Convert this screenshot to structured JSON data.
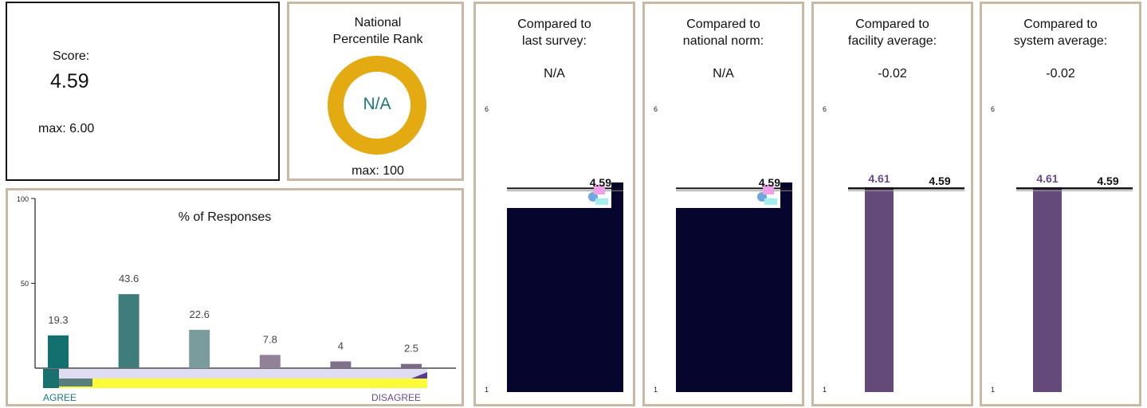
{
  "score": {
    "label": "Score:",
    "value": "4.59",
    "max_label": "max: 6.00"
  },
  "percentile": {
    "title": "National Percentile Rank",
    "value": "N/A",
    "max_label": "max: 100",
    "ring_color": "#E3AA12",
    "value_color": "#1a7a7a"
  },
  "comparisons": [
    {
      "title": "Compared to last survey:",
      "value": "N/A",
      "axis_top": "6",
      "axis_bottom": "1",
      "marker_label": "4.59",
      "bar_value": null,
      "bar_label": "",
      "bar_color": "#05052e",
      "style": "dark"
    },
    {
      "title": "Compared to national norm:",
      "value": "N/A",
      "axis_top": "6",
      "axis_bottom": "1",
      "marker_label": "4.59",
      "bar_value": null,
      "bar_label": "",
      "bar_color": "#05052e",
      "style": "dark"
    },
    {
      "title": "Compared to facility average:",
      "value": "-0.02",
      "axis_top": "6",
      "axis_bottom": "1",
      "marker_label": "4.59",
      "bar_value": 4.61,
      "bar_label": "4.61",
      "bar_color": "#634a7a",
      "style": "purple"
    },
    {
      "title": "Compared to system average:",
      "value": "-0.02",
      "axis_top": "6",
      "axis_bottom": "1",
      "marker_label": "4.59",
      "bar_value": 4.61,
      "bar_label": "4.61",
      "bar_color": "#634a7a",
      "style": "purple"
    }
  ],
  "responses": {
    "left_label": "AGREE",
    "right_label": "DISAGREE",
    "left_color": "#1a7a7a",
    "right_color": "#6b4a8c"
  },
  "chart_data": {
    "type": "bar",
    "title": "% of Responses",
    "ylim": [
      0,
      100
    ],
    "yticks": [
      "100",
      "50"
    ],
    "values": [
      19.3,
      43.6,
      22.6,
      7.8,
      4,
      2.5
    ],
    "value_labels": [
      "19.3",
      "43.6",
      "22.6",
      "7.8",
      "4",
      "2.5"
    ],
    "colors": [
      "#146f6f",
      "#3f7d7d",
      "#7a9c9c",
      "#928299",
      "#7e6f8a",
      "#7a6a86"
    ]
  }
}
